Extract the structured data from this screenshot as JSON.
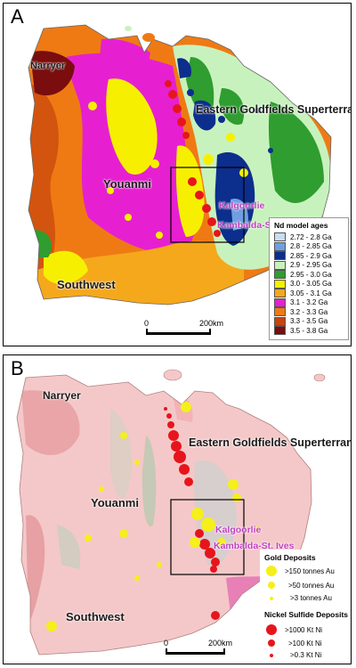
{
  "panel_a": {
    "letter": "A",
    "regions": {
      "narryer": "Narryer",
      "youanmi": "Youanmi",
      "southwest": "Southwest",
      "eastern_goldfields": "Eastern Goldfields Superterrane"
    },
    "towns": {
      "kalgoorlie": "Kalgoorlie",
      "kambalda": "Kambalda-St. Ives"
    },
    "legend": {
      "title": "Nd model ages",
      "items": [
        {
          "label": "2.72 - 2.8 Ga",
          "color": "#c9ddf2"
        },
        {
          "label": "2.8 - 2.85 Ga",
          "color": "#6f9fe0"
        },
        {
          "label": "2.85 - 2.9 Ga",
          "color": "#0c2e8c"
        },
        {
          "label": "2.9 - 2.95 Ga",
          "color": "#c8f2bd"
        },
        {
          "label": "2.95 - 3.0 Ga",
          "color": "#2f9d2f"
        },
        {
          "label": "3.0 - 3.05 Ga",
          "color": "#f6f000"
        },
        {
          "label": "3.05 - 3.1 Ga",
          "color": "#f5a81c"
        },
        {
          "label": "3.1 - 3.2 Ga",
          "color": "#e620d0"
        },
        {
          "label": "3.2 - 3.3 Ga",
          "color": "#ef7a14"
        },
        {
          "label": "3.3 - 3.5 Ga",
          "color": "#c8440c"
        },
        {
          "label": "3.5 - 3.8 Ga",
          "color": "#7a0d0d"
        }
      ]
    },
    "scale": {
      "start": "0",
      "end": "200km"
    }
  },
  "panel_b": {
    "letter": "B",
    "regions": {
      "narryer": "Narryer",
      "youanmi": "Youanmi",
      "southwest": "Southwest",
      "eastern_goldfields": "Eastern Goldfields Superterrane"
    },
    "towns": {
      "kalgoorlie": "Kalgoorlie",
      "kambalda": "Kambalda-St. Ives"
    },
    "legend": {
      "gold_title": "Gold Deposits",
      "gold_items": [
        ">150 tonnes Au",
        ">50 tonnes Au",
        ">3 tonnes Au"
      ],
      "gold_color": "#f5ef1a",
      "nickel_title": "Nickel Sulfide Deposits",
      "nickel_items": [
        ">1000 Kt Ni",
        ">100 Kt Ni",
        ">0.3 Kt Ni"
      ],
      "nickel_color": "#e8141c"
    },
    "scale": {
      "start": "0",
      "end": "200km"
    }
  }
}
